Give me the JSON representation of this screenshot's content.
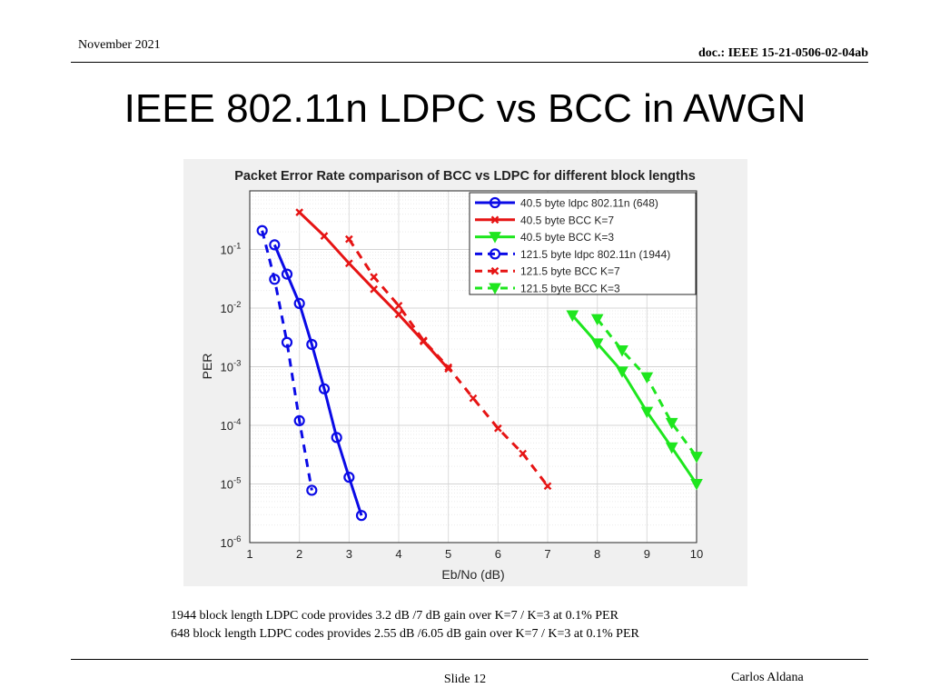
{
  "header": {
    "date": "November 2021",
    "doc": "doc.: IEEE 15-21-0506-02-04ab"
  },
  "title": "IEEE 802.11n LDPC vs BCC in AWGN",
  "notes": [
    "1944 block length LDPC code provides 3.2 dB /7 dB gain over K=7 / K=3 at 0.1% PER",
    "648 block length LDPC codes provides 2.55 dB /6.05 dB gain over K=7 / K=3 at 0.1% PER"
  ],
  "footer": {
    "slide": "Slide 12",
    "author": "Carlos Aldana"
  },
  "chart_data": {
    "type": "line",
    "title": "Packet Error Rate comparison of BCC vs LDPC for different block lengths",
    "xlabel": "Eb/No (dB)",
    "ylabel": "PER",
    "xlim": [
      1,
      10
    ],
    "ylim": [
      1e-06,
      1
    ],
    "yscale": "log",
    "grid": true,
    "xticks": [
      "1",
      "2",
      "3",
      "4",
      "5",
      "6",
      "7",
      "8",
      "9",
      "10"
    ],
    "yticks": [
      {
        "base": "10",
        "exp": "-1"
      },
      {
        "base": "10",
        "exp": "-2"
      },
      {
        "base": "10",
        "exp": "-3"
      },
      {
        "base": "10",
        "exp": "-4"
      },
      {
        "base": "10",
        "exp": "-5"
      },
      {
        "base": "10",
        "exp": "-6"
      }
    ],
    "legend_position": "top-right",
    "series": [
      {
        "name": "40.5 byte ldpc 802.11n (648)",
        "color": "#0a0ae6",
        "dash": "solid",
        "marker": "circle",
        "x": [
          1.5,
          1.75,
          2.0,
          2.25,
          2.5,
          2.75,
          3.0,
          3.25
        ],
        "y": [
          0.12,
          0.038,
          0.012,
          0.0024,
          0.00042,
          6.2e-05,
          1.3e-05,
          2.9e-06
        ]
      },
      {
        "name": "40.5 byte BCC K=7",
        "color": "#e61414",
        "dash": "solid",
        "marker": "x",
        "x": [
          2.0,
          2.5,
          3.0,
          3.5,
          4.0,
          4.5,
          5.0
        ],
        "y": [
          0.43,
          0.17,
          0.058,
          0.021,
          0.0078,
          0.0027,
          0.00092
        ]
      },
      {
        "name": "40.5 byte BCC K=3",
        "color": "#1ee61e",
        "dash": "solid",
        "marker": "triangle-down",
        "x": [
          7.5,
          8.0,
          8.5,
          9.0,
          9.5,
          10.0
        ],
        "y": [
          0.0075,
          0.0025,
          0.00083,
          0.00017,
          4.2e-05,
          1e-05
        ]
      },
      {
        "name": "121.5 byte ldpc 802.11n (1944)",
        "color": "#0a0ae6",
        "dash": "dashed",
        "marker": "circle",
        "x": [
          1.25,
          1.5,
          1.75,
          2.0,
          2.25
        ],
        "y": [
          0.21,
          0.031,
          0.0026,
          0.00012,
          7.8e-06
        ]
      },
      {
        "name": "121.5 byte BCC K=7",
        "color": "#e61414",
        "dash": "dashed",
        "marker": "x",
        "x": [
          3.0,
          3.5,
          4.0,
          4.5,
          5.0,
          5.5,
          6.0,
          6.5,
          7.0
        ],
        "y": [
          0.15,
          0.034,
          0.011,
          0.0028,
          0.00098,
          0.00029,
          8.9e-05,
          3.3e-05,
          9.2e-06
        ]
      },
      {
        "name": "121.5 byte BCC K=3",
        "color": "#1ee61e",
        "dash": "dashed",
        "marker": "triangle-down",
        "x": [
          8.0,
          8.5,
          9.0,
          9.5,
          10.0
        ],
        "y": [
          0.0065,
          0.0019,
          0.00066,
          0.00011,
          2.9e-05
        ]
      }
    ]
  }
}
